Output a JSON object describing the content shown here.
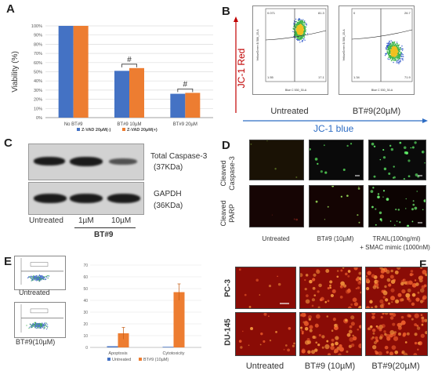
{
  "panels": {
    "a": "A",
    "b": "B",
    "c": "C",
    "d": "D",
    "e": "E",
    "f": "F"
  },
  "chart_data": [
    {
      "id": "panel-a",
      "type": "bar",
      "ylabel": "Viability (%)",
      "categories": [
        "No BT#9",
        "BT#9 10µM",
        "BT#9 20µM"
      ],
      "y_ticks": [
        "0%",
        "10%",
        "20%",
        "30%",
        "40%",
        "50%",
        "60%",
        "70%",
        "80%",
        "90%",
        "100%"
      ],
      "ylim": [
        0,
        100
      ],
      "series": [
        {
          "name": "Z-VAD 20µM(-)",
          "color": "#4472c4",
          "values": [
            100,
            51,
            26
          ]
        },
        {
          "name": "Z-VAD 20µM(+)",
          "color": "#ed7d31",
          "values": [
            100,
            54,
            27
          ]
        }
      ],
      "annotations": [
        "#",
        "#"
      ],
      "legend_position": "bottom",
      "grid": true
    },
    {
      "id": "panel-e-bar",
      "type": "bar",
      "categories": [
        "Apoptosis",
        "Cytotoxicity"
      ],
      "y_ticks": [
        "0",
        "10",
        "20",
        "30",
        "40",
        "50",
        "60",
        "70"
      ],
      "ylim": [
        0,
        70
      ],
      "series": [
        {
          "name": "Untreated",
          "color": "#4472c4",
          "values": [
            1,
            0.5
          ]
        },
        {
          "name": "BT#9 (10µM)",
          "color": "#ed7d31",
          "values": [
            12,
            47
          ],
          "errors": [
            5,
            7
          ]
        }
      ],
      "legend_position": "bottom",
      "grid": true
    }
  ],
  "b": {
    "ylabel": "JC-1 Red",
    "xlabel": "JC-1 blue",
    "plots": [
      {
        "label": "Untreated",
        "q1": "0.071",
        "q2": "81.3",
        "q3": "17.1",
        "q4": "1.55"
      },
      {
        "label": "BT#9(20µM)",
        "q1": "0",
        "q2": "26.7",
        "q3": "71.9",
        "q4": "1.34"
      }
    ],
    "axis_y_text": "YellowGreen B 586_15-A",
    "axis_x_text": "Blue C 530_30-A"
  },
  "c": {
    "blot_top_label": "Total Caspase-3",
    "blot_top_kda": "(37KDa)",
    "blot_bottom_label": "GAPDH",
    "blot_bottom_kda": "(36KDa)",
    "lanes": [
      "Untreated",
      "1µM",
      "10µM"
    ],
    "group_label": "BT#9"
  },
  "d": {
    "row1_line1": "Cleaved",
    "row1_line2": "Caspase-3",
    "row2_line1": "Cleaved",
    "row2_line2": "PARP",
    "col1": "Untreated",
    "col2": "BT#9 (10µM)",
    "col3_line1": "TRAIL(100ng/ml)",
    "col3_line2": "+ SMAC mimic (1000nM)"
  },
  "e": {
    "plot1_label": "Untreated",
    "plot2_label": "BT#9(10µM)"
  },
  "f": {
    "row1": "PC-3",
    "row2": "DU-145",
    "col1": "Untreated",
    "col2": "BT#9 (10µM)",
    "col3": "BT#9(20µM)"
  }
}
